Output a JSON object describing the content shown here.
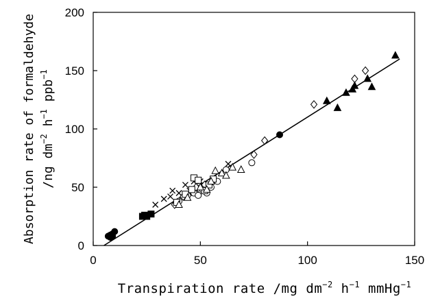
{
  "chart_data": {
    "type": "scatter",
    "title": "",
    "xlabel": {
      "main": "Transpiration rate /mg dm",
      "sup1": "−2",
      "mid1": " h",
      "sup2": "−1",
      "mid2": " mmHg",
      "sup3": "−1"
    },
    "ylabel": {
      "line1": "Absorption rate of formaldehyde",
      "line2_main": "/ng dm",
      "line2_sup1": "−2",
      "line2_mid1": " h",
      "line2_sup2": "−1",
      "line2_mid2": "  ppb",
      "line2_sup3": "−1"
    },
    "xlim": [
      0,
      150
    ],
    "ylim": [
      0,
      200
    ],
    "x_ticks": [
      "0",
      "50",
      "100",
      "150"
    ],
    "y_ticks": [
      "0",
      "50",
      "100",
      "150",
      "200"
    ],
    "grid": false,
    "legend": "none",
    "fit_line": {
      "x": [
        5,
        143
      ],
      "y": [
        0,
        160
      ]
    },
    "series": [
      {
        "marker": "filled-circle",
        "points": [
          [
            7,
            8
          ],
          [
            8,
            9
          ],
          [
            9,
            10
          ],
          [
            10,
            12
          ],
          [
            8,
            7
          ],
          [
            9,
            8
          ],
          [
            87,
            95
          ]
        ]
      },
      {
        "marker": "filled-square",
        "points": [
          [
            23,
            25
          ],
          [
            24,
            26
          ],
          [
            27,
            27
          ],
          [
            25,
            25
          ]
        ]
      },
      {
        "marker": "cross",
        "points": [
          [
            29,
            35
          ],
          [
            33,
            40
          ],
          [
            36,
            42
          ],
          [
            37,
            47
          ],
          [
            40,
            45
          ],
          [
            43,
            52
          ],
          [
            45,
            47
          ],
          [
            47,
            55
          ],
          [
            48,
            48
          ],
          [
            50,
            55
          ],
          [
            63,
            70
          ]
        ]
      },
      {
        "marker": "open-diamond",
        "points": [
          [
            38,
            35
          ],
          [
            42,
            42
          ],
          [
            46,
            46
          ],
          [
            48,
            50
          ],
          [
            52,
            52
          ],
          [
            75,
            78
          ],
          [
            80,
            90
          ],
          [
            103,
            121
          ],
          [
            122,
            143
          ],
          [
            127,
            150
          ]
        ]
      },
      {
        "marker": "open-circle",
        "points": [
          [
            40,
            38
          ],
          [
            44,
            43
          ],
          [
            47,
            45
          ],
          [
            49,
            43
          ],
          [
            51,
            48
          ],
          [
            53,
            45
          ],
          [
            55,
            50
          ],
          [
            58,
            55
          ],
          [
            62,
            65
          ],
          [
            74,
            71
          ]
        ]
      },
      {
        "marker": "open-square",
        "points": [
          [
            39,
            37
          ],
          [
            43,
            44
          ],
          [
            46,
            48
          ],
          [
            47,
            58
          ],
          [
            49,
            56
          ],
          [
            52,
            47
          ],
          [
            54,
            52
          ],
          [
            56,
            57
          ]
        ]
      },
      {
        "marker": "open-triangle",
        "points": [
          [
            40,
            35
          ],
          [
            44,
            41
          ],
          [
            50,
            50
          ],
          [
            53,
            48
          ],
          [
            55,
            55
          ],
          [
            57,
            64
          ],
          [
            60,
            62
          ],
          [
            62,
            60
          ],
          [
            65,
            67
          ],
          [
            69,
            65
          ]
        ]
      },
      {
        "marker": "filled-triangle",
        "points": [
          [
            109,
            124
          ],
          [
            114,
            118
          ],
          [
            118,
            131
          ],
          [
            121,
            134
          ],
          [
            122,
            137
          ],
          [
            128,
            143
          ],
          [
            130,
            136
          ],
          [
            141,
            163
          ]
        ]
      }
    ]
  }
}
